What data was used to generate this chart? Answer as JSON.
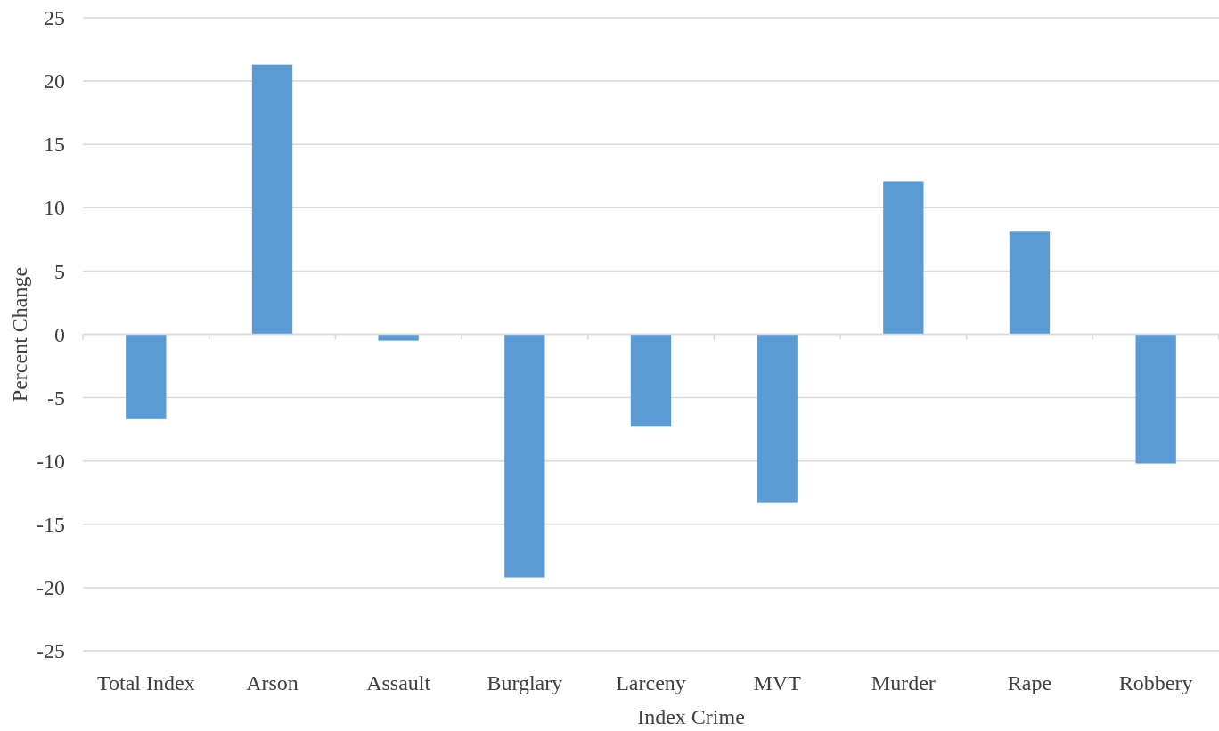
{
  "chart_data": {
    "type": "bar",
    "xlabel": "Index Crime",
    "ylabel": "Percent Change",
    "categories": [
      "Total Index",
      "Arson",
      "Assault",
      "Burglary",
      "Larceny",
      "MVT",
      "Murder",
      "Rape",
      "Robbery"
    ],
    "values": [
      -6.7,
      21.3,
      -0.5,
      -19.2,
      -7.3,
      -13.3,
      12.1,
      8.1,
      -10.2
    ],
    "color": "#5b9bd5",
    "ylim": [
      -25,
      25
    ],
    "yticks": [
      -25,
      -20,
      -15,
      -10,
      -5,
      0,
      5,
      10,
      15,
      20,
      25
    ],
    "grid": "y"
  }
}
